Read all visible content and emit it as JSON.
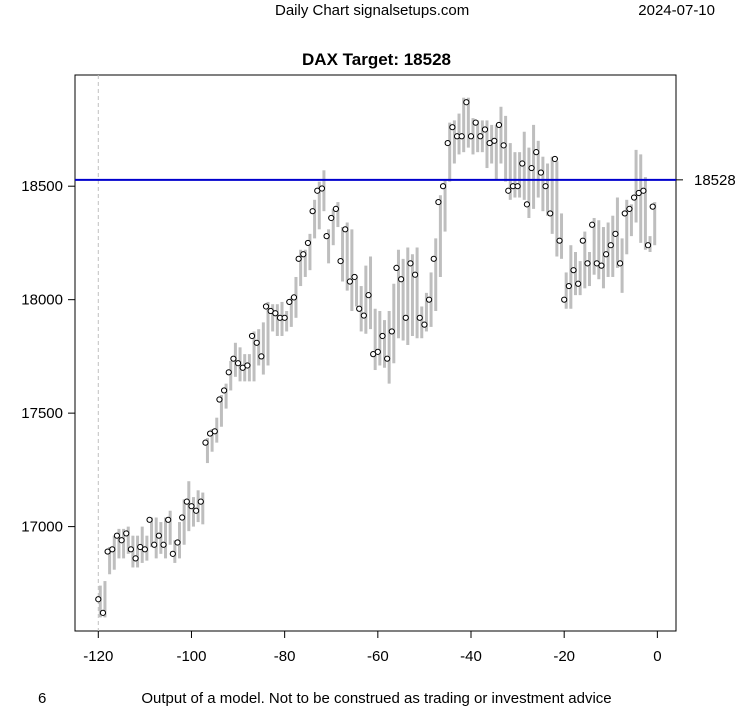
{
  "header": {
    "left_text": "Daily Chart signalsetups.com",
    "right_text": "2024-07-10"
  },
  "footer": {
    "left_text": "6",
    "center_text": "Output of a model. Not to be construed as trading or investment advice"
  },
  "colors": {
    "bar": "#bebebe",
    "target_line": "#0000cd",
    "point_fill": "#ffffff",
    "point_stroke": "#000000",
    "vline": "#c0c0c0"
  },
  "chart_data": {
    "type": "scatter",
    "title": "DAX Target: 18528",
    "xlabel": "",
    "ylabel": "",
    "xlim": [
      -125,
      4
    ],
    "ylim": [
      16540,
      18990
    ],
    "x_ticks": [
      -120,
      -100,
      -80,
      -60,
      -40,
      -20,
      0
    ],
    "y_ticks": [
      17000,
      17500,
      18000,
      18500
    ],
    "target": {
      "value": 18528,
      "label": "18528"
    },
    "reference_x": -120,
    "grid": false,
    "series": [
      {
        "x": [
          -120,
          -119,
          -118,
          -117,
          -116,
          -115,
          -114,
          -113,
          -112,
          -111,
          -110,
          -109,
          -108,
          -107,
          -106,
          -105,
          -104,
          -103,
          -102,
          -101,
          -100,
          -99,
          -98,
          -97,
          -96,
          -95,
          -94,
          -93,
          -92,
          -91,
          -90,
          -89,
          -88,
          -87,
          -86,
          -85,
          -84,
          -83,
          -82,
          -81,
          -80,
          -79,
          -78,
          -77,
          -76,
          -75,
          -74,
          -73,
          -72,
          -71,
          -70,
          -69,
          -68,
          -67,
          -66,
          -65,
          -64,
          -63,
          -62,
          -61,
          -60,
          -59,
          -58,
          -57,
          -56,
          -55,
          -54,
          -53,
          -52,
          -51,
          -50,
          -49,
          -48,
          -47,
          -46,
          -45,
          -44,
          -43,
          -42,
          -41,
          -40,
          -39,
          -38,
          -37,
          -36,
          -35,
          -34,
          -33,
          -32,
          -31,
          -30,
          -29,
          -28,
          -27,
          -26,
          -25,
          -24,
          -23,
          -22,
          -21,
          -20,
          -19,
          -18,
          -17,
          -16,
          -15,
          -14,
          -13,
          -12,
          -11,
          -10,
          -9,
          -8,
          -7,
          -6,
          -5,
          -4,
          -3,
          -2,
          -1
        ],
        "close": [
          16680,
          16620,
          16890,
          16900,
          16960,
          16940,
          16970,
          16900,
          16860,
          16910,
          16900,
          17030,
          16920,
          16960,
          16920,
          17030,
          16880,
          16930,
          17040,
          17110,
          17090,
          17070,
          17110,
          17370,
          17410,
          17420,
          17560,
          17600,
          17680,
          17740,
          17720,
          17700,
          17710,
          17840,
          17810,
          17750,
          17970,
          17950,
          17940,
          17920,
          17920,
          17990,
          18010,
          18180,
          18200,
          18250,
          18390,
          18480,
          18490,
          18280,
          18360,
          18400,
          18170,
          18310,
          18080,
          18100,
          17960,
          17930,
          18020,
          17760,
          17770,
          17840,
          17740,
          17860,
          18140,
          18090,
          17920,
          18160,
          18110,
          17920,
          17890,
          18000,
          18180,
          18430,
          18500,
          18690,
          18760,
          18720,
          18720,
          18870,
          18720,
          18780,
          18720,
          18750,
          18690,
          18700,
          18770,
          18680,
          18480,
          18500,
          18500,
          18600,
          18420,
          18580,
          18650,
          18560,
          18500,
          18380,
          18620,
          18260,
          18000,
          18060,
          18130,
          18070,
          18260,
          18160,
          18330,
          18160,
          18150,
          18200,
          18240,
          18290,
          18160,
          18380,
          18400,
          18450,
          18470,
          18480,
          18240,
          18410
        ],
        "low": [
          16600,
          16600,
          16790,
          16810,
          16860,
          16860,
          16880,
          16820,
          16820,
          16840,
          16850,
          16910,
          16860,
          16880,
          16860,
          16920,
          16840,
          16860,
          16920,
          16980,
          17000,
          17020,
          17010,
          17280,
          17330,
          17370,
          17440,
          17520,
          17600,
          17660,
          17640,
          17640,
          17640,
          17640,
          17710,
          17670,
          17710,
          17860,
          17840,
          17840,
          17860,
          17880,
          17920,
          18060,
          18100,
          18130,
          18270,
          18310,
          18390,
          18160,
          18240,
          18320,
          18080,
          18040,
          17950,
          17970,
          17860,
          17850,
          17870,
          17690,
          17710,
          17700,
          17630,
          17720,
          17830,
          17820,
          17800,
          17840,
          17830,
          17830,
          17860,
          17880,
          17950,
          18100,
          18300,
          18520,
          18600,
          18640,
          18650,
          18670,
          18640,
          18650,
          18650,
          18580,
          18600,
          18530,
          18600,
          18520,
          18440,
          18450,
          18450,
          18440,
          18360,
          18400,
          18450,
          18390,
          18370,
          18290,
          18190,
          18180,
          17960,
          17960,
          18020,
          18020,
          18050,
          18060,
          18110,
          18090,
          18050,
          18100,
          18100,
          18140,
          18030,
          18200,
          18280,
          18340,
          18250,
          18220,
          18210,
          18240
        ],
        "high": [
          16740,
          16760,
          16910,
          16960,
          16990,
          16990,
          17000,
          16960,
          16960,
          17000,
          16960,
          17040,
          17040,
          17020,
          17040,
          17070,
          16940,
          17020,
          17120,
          17200,
          17130,
          17160,
          17150,
          17390,
          17430,
          17480,
          17580,
          17630,
          17730,
          17810,
          17790,
          17760,
          17760,
          17860,
          17870,
          17900,
          17990,
          17980,
          17980,
          17990,
          17950,
          18010,
          18100,
          18220,
          18220,
          18290,
          18440,
          18520,
          18570,
          18310,
          18400,
          18430,
          18320,
          18340,
          18310,
          18100,
          18060,
          18150,
          18190,
          17960,
          17950,
          17910,
          17950,
          18070,
          18220,
          18180,
          18230,
          18200,
          18230,
          17970,
          18030,
          18120,
          18270,
          18460,
          18530,
          18780,
          18790,
          18820,
          18890,
          18890,
          18800,
          18790,
          18790,
          18790,
          18770,
          18770,
          18850,
          18810,
          18690,
          18650,
          18650,
          18740,
          18670,
          18770,
          18700,
          18630,
          18600,
          18630,
          18610,
          18380,
          18120,
          18240,
          18210,
          18170,
          18300,
          18210,
          18360,
          18350,
          18320,
          18340,
          18370,
          18450,
          18270,
          18440,
          18420,
          18660,
          18640,
          18540,
          18280,
          18430
        ]
      }
    ]
  }
}
